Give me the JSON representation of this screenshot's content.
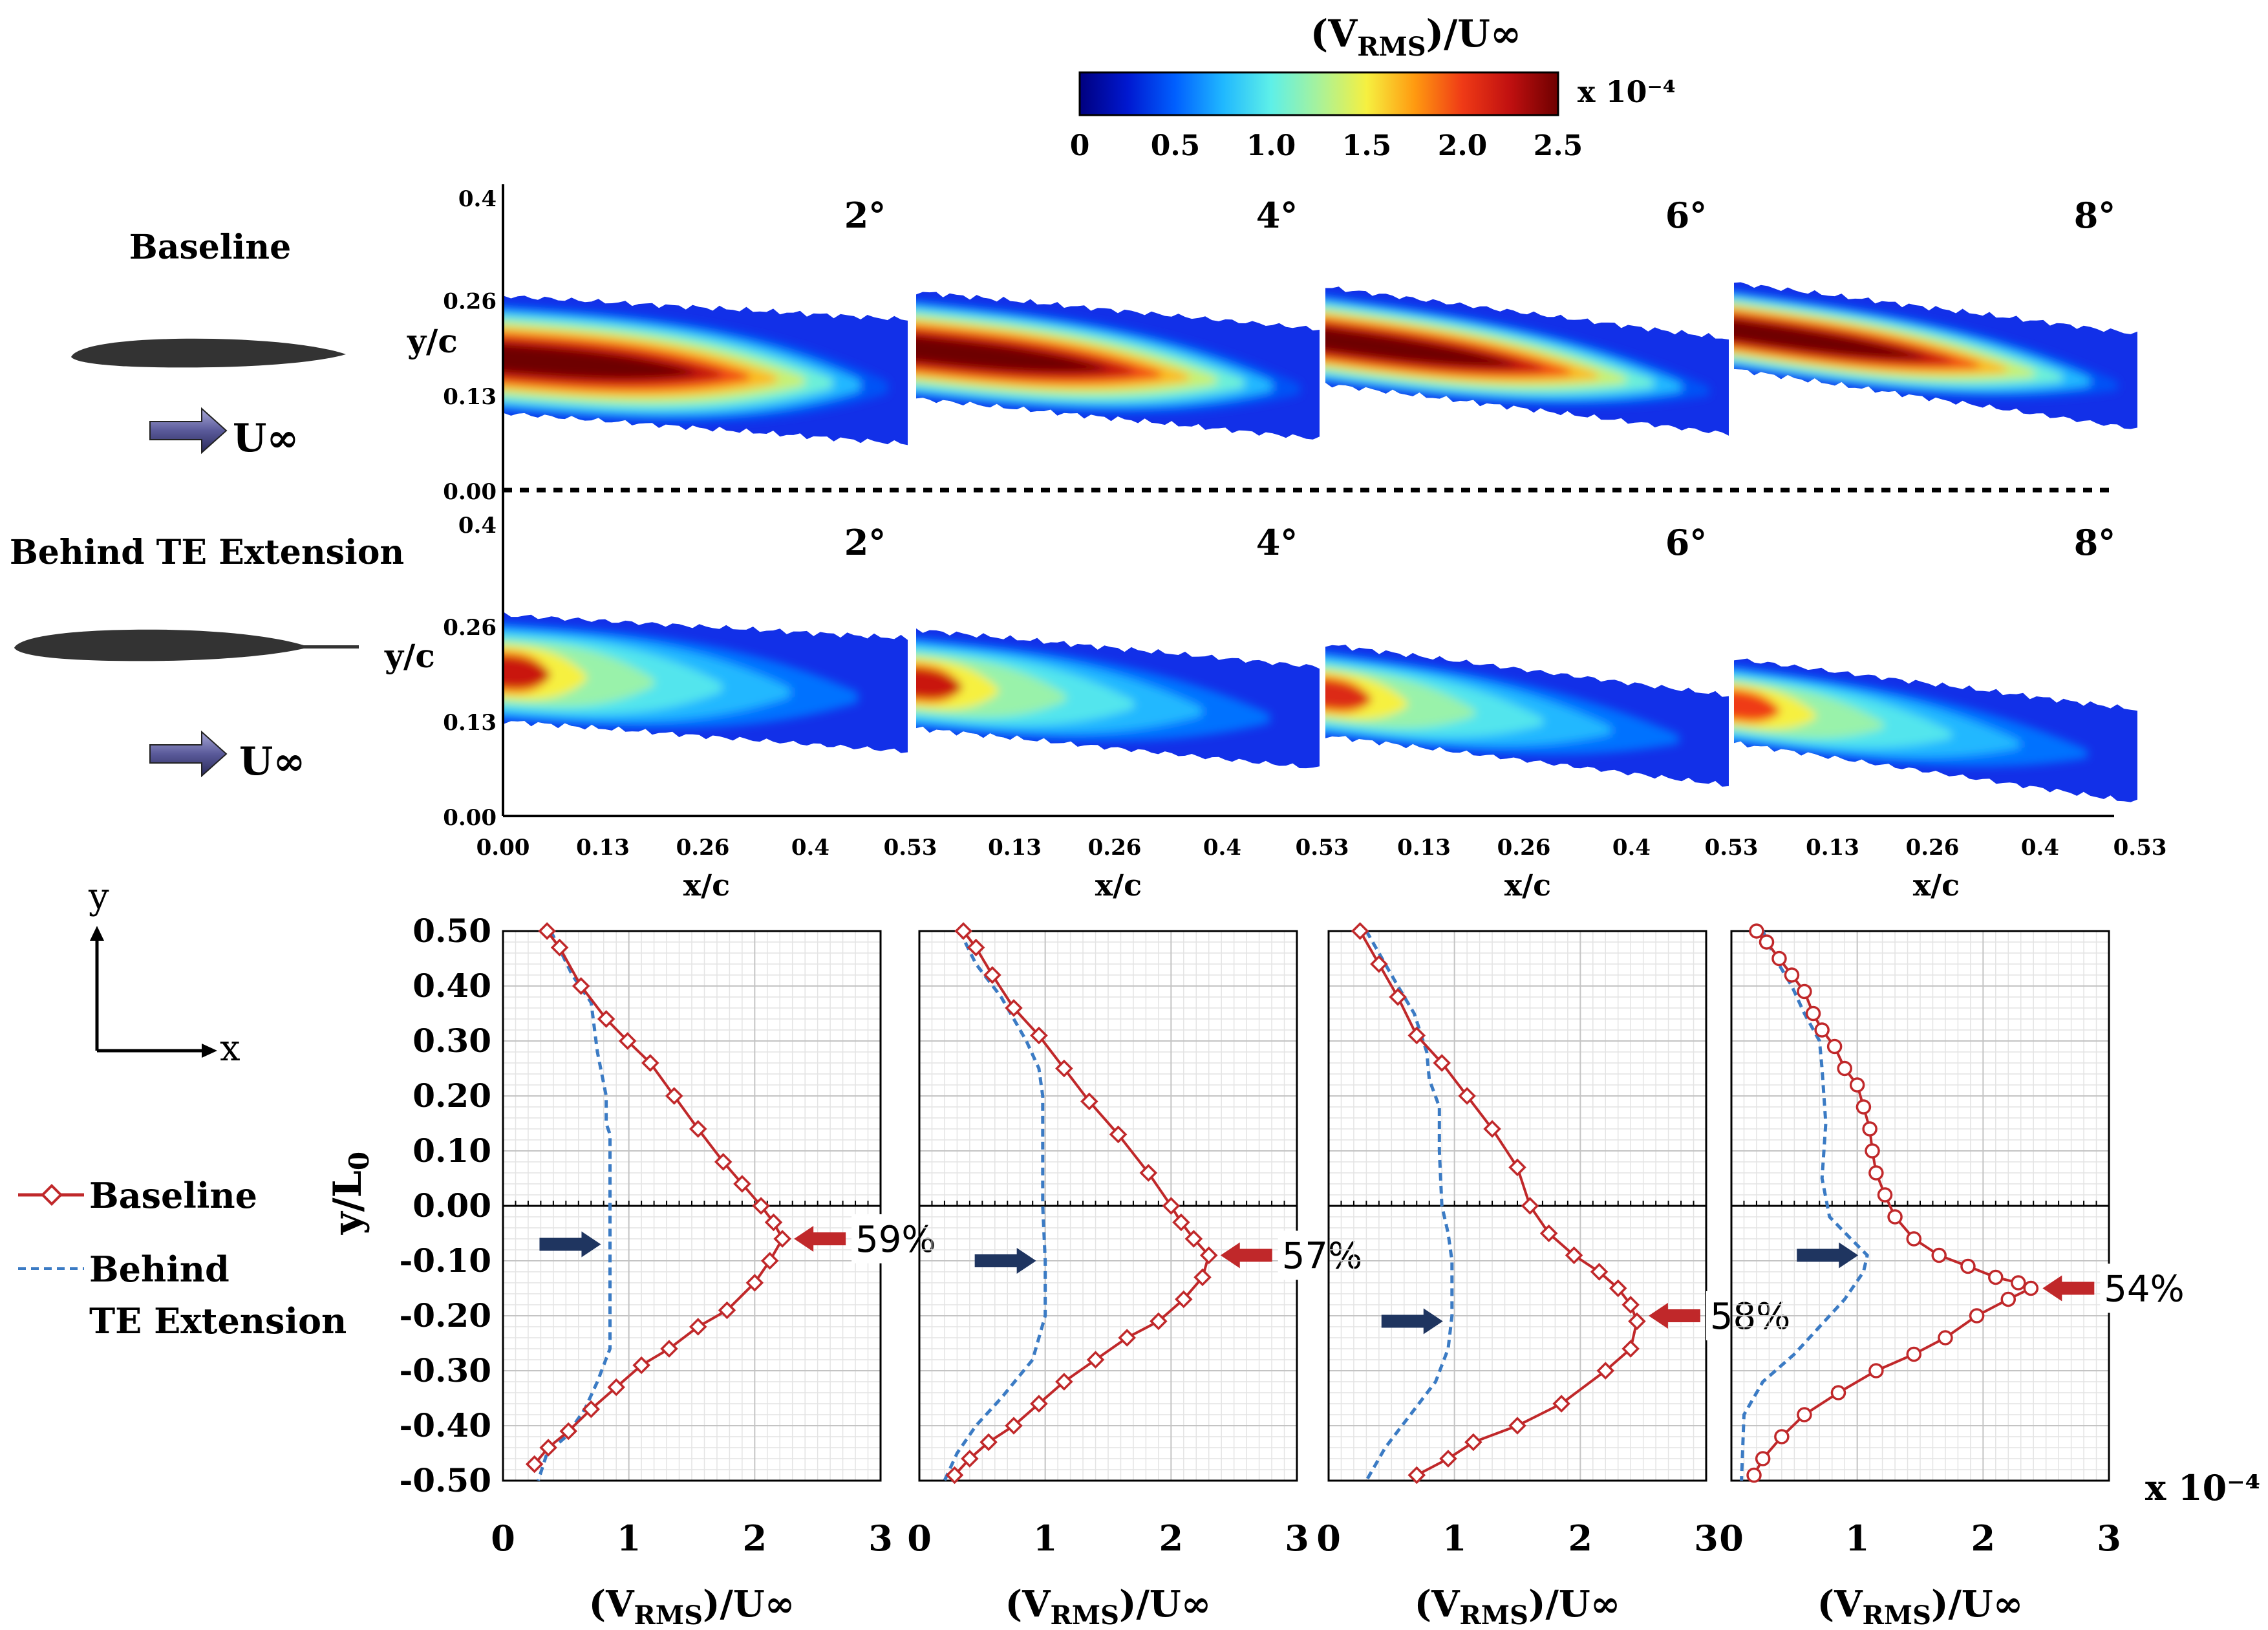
{
  "colorbar": {
    "title_main": "(V",
    "title_sub": "RMS",
    "title_end": ")/U∞",
    "ticks": [
      "0",
      "0.5",
      "1.0",
      "1.5",
      "2.0",
      "2.5"
    ],
    "multiplier": "x 10⁻⁴",
    "stops": [
      "#00007f",
      "#0018d0",
      "#0060ff",
      "#20b8ff",
      "#5ef0e8",
      "#a8f29a",
      "#f6f040",
      "#ff9a10",
      "#ef3a16",
      "#c01010",
      "#6e0000"
    ]
  },
  "row_labels": {
    "baseline": "Baseline",
    "extension": "Behind TE Extension",
    "freestream": "U∞"
  },
  "contour_panels": {
    "angles": [
      "2°",
      "4°",
      "6°",
      "8°"
    ],
    "y_label": "y/c",
    "x_label": "x/c",
    "y_ticks": [
      "0.4",
      "0.26",
      "0.13",
      "0.00"
    ],
    "x_ticks_first": [
      "0.00",
      "0.13",
      "0.26",
      "0.4",
      "0.53"
    ],
    "x_ticks_rest": [
      "0.13",
      "0.26",
      "0.4",
      "0.53"
    ],
    "baseline_peak": [
      2.5,
      2.5,
      2.5,
      2.5
    ],
    "extension_peak": [
      2.2,
      2.2,
      2.1,
      2.0
    ]
  },
  "axes_icon": {
    "y": "y",
    "x": "x"
  },
  "legend": {
    "baseline": "Baseline",
    "extension_line1": "Behind",
    "extension_line2": "TE Extension"
  },
  "chart_data": {
    "type": "line",
    "title": "",
    "ylabel": "y/L₀",
    "y_label_main": "y/L",
    "y_label_sub": "0",
    "xlabel": "(V_RMS)/U∞",
    "xlabel_main": "(V",
    "xlabel_sub": "RMS",
    "xlabel_end": ")/U∞",
    "xlim": [
      0,
      3
    ],
    "ylim": [
      -0.5,
      0.5
    ],
    "x_ticks": [
      "0",
      "1",
      "2",
      "3"
    ],
    "y_ticks": [
      "0.50",
      "0.40",
      "0.30",
      "0.20",
      "0.10",
      "0.00",
      "-0.10",
      "-0.20",
      "-0.30",
      "-0.40",
      "-0.50"
    ],
    "multiplier": "x 10⁻⁴",
    "panels": [
      {
        "angle": "2°",
        "reduction": "59%",
        "baseline_marker": "diamond",
        "baseline": {
          "x": [
            0.35,
            0.45,
            0.62,
            0.82,
            0.99,
            1.17,
            1.36,
            1.55,
            1.75,
            1.9,
            2.05,
            2.15,
            2.22,
            2.12,
            2.0,
            1.78,
            1.55,
            1.32,
            1.1,
            0.9,
            0.7,
            0.52,
            0.36,
            0.25
          ],
          "y": [
            0.5,
            0.47,
            0.4,
            0.34,
            0.3,
            0.26,
            0.2,
            0.14,
            0.08,
            0.04,
            0.0,
            -0.03,
            -0.06,
            -0.1,
            -0.14,
            -0.19,
            -0.22,
            -0.26,
            -0.29,
            -0.33,
            -0.37,
            -0.41,
            -0.44,
            -0.47
          ]
        },
        "extension": {
          "x": [
            0.38,
            0.55,
            0.7,
            0.75,
            0.82,
            0.82,
            0.85,
            0.85,
            0.85,
            0.85,
            0.85,
            0.75,
            0.65,
            0.5,
            0.35,
            0.28
          ],
          "y": [
            0.5,
            0.42,
            0.37,
            0.28,
            0.2,
            0.15,
            0.13,
            0.0,
            -0.1,
            -0.2,
            -0.26,
            -0.32,
            -0.37,
            -0.42,
            -0.45,
            -0.5
          ]
        },
        "peak_arrow_y": -0.06,
        "ext_arrow_y": -0.07
      },
      {
        "angle": "4°",
        "reduction": "57%",
        "baseline_marker": "diamond",
        "baseline": {
          "x": [
            0.35,
            0.45,
            0.58,
            0.75,
            0.95,
            1.15,
            1.35,
            1.58,
            1.82,
            2.0,
            2.08,
            2.18,
            2.3,
            2.25,
            2.1,
            1.9,
            1.65,
            1.4,
            1.15,
            0.95,
            0.75,
            0.55,
            0.4,
            0.28
          ],
          "y": [
            0.5,
            0.47,
            0.42,
            0.36,
            0.31,
            0.25,
            0.19,
            0.13,
            0.06,
            0.0,
            -0.03,
            -0.06,
            -0.09,
            -0.13,
            -0.17,
            -0.21,
            -0.24,
            -0.28,
            -0.32,
            -0.36,
            -0.4,
            -0.43,
            -0.46,
            -0.49
          ]
        },
        "extension": {
          "x": [
            0.32,
            0.45,
            0.65,
            0.85,
            0.95,
            0.98,
            0.98,
            0.98,
            1.0,
            1.0,
            0.9,
            0.65,
            0.45,
            0.3,
            0.2
          ],
          "y": [
            0.5,
            0.44,
            0.38,
            0.3,
            0.25,
            0.2,
            0.1,
            0.0,
            -0.1,
            -0.2,
            -0.28,
            -0.35,
            -0.4,
            -0.45,
            -0.5
          ]
        },
        "peak_arrow_y": -0.09,
        "ext_arrow_y": -0.1
      },
      {
        "angle": "6°",
        "reduction": "58%",
        "baseline_marker": "diamond",
        "baseline": {
          "x": [
            0.25,
            0.4,
            0.55,
            0.7,
            0.9,
            1.1,
            1.3,
            1.5,
            1.6,
            1.75,
            1.95,
            2.15,
            2.3,
            2.4,
            2.45,
            2.4,
            2.2,
            1.85,
            1.5,
            1.15,
            0.95,
            0.7
          ],
          "y": [
            0.5,
            0.44,
            0.38,
            0.31,
            0.26,
            0.2,
            0.14,
            0.07,
            0.0,
            -0.05,
            -0.09,
            -0.12,
            -0.15,
            -0.18,
            -0.21,
            -0.26,
            -0.3,
            -0.36,
            -0.4,
            -0.43,
            -0.46,
            -0.49
          ]
        },
        "extension": {
          "x": [
            0.3,
            0.45,
            0.55,
            0.68,
            0.78,
            0.8,
            0.88,
            0.88,
            0.9,
            0.95,
            0.98,
            0.98,
            0.95,
            0.85,
            0.65,
            0.45,
            0.3
          ],
          "y": [
            0.5,
            0.44,
            0.4,
            0.35,
            0.28,
            0.23,
            0.18,
            0.1,
            0.0,
            -0.05,
            -0.1,
            -0.2,
            -0.26,
            -0.32,
            -0.38,
            -0.44,
            -0.5
          ]
        },
        "peak_arrow_y": -0.2,
        "ext_arrow_y": -0.21
      },
      {
        "angle": "8°",
        "reduction": "54%",
        "baseline_marker": "circle",
        "baseline": {
          "x": [
            0.2,
            0.28,
            0.38,
            0.48,
            0.58,
            0.65,
            0.72,
            0.82,
            0.9,
            1.0,
            1.05,
            1.1,
            1.12,
            1.15,
            1.22,
            1.3,
            1.45,
            1.65,
            1.88,
            2.1,
            2.28,
            2.38,
            2.2,
            1.95,
            1.7,
            1.45,
            1.15,
            0.85,
            0.58,
            0.4,
            0.25,
            0.18
          ],
          "y": [
            0.5,
            0.48,
            0.45,
            0.42,
            0.39,
            0.35,
            0.32,
            0.29,
            0.25,
            0.22,
            0.18,
            0.14,
            0.1,
            0.06,
            0.02,
            -0.02,
            -0.06,
            -0.09,
            -0.11,
            -0.13,
            -0.14,
            -0.15,
            -0.17,
            -0.2,
            -0.24,
            -0.27,
            -0.3,
            -0.34,
            -0.38,
            -0.42,
            -0.46,
            -0.49
          ]
        },
        "extension": {
          "x": [
            0.25,
            0.35,
            0.48,
            0.58,
            0.7,
            0.72,
            0.75,
            0.72,
            0.78,
            0.95,
            1.08,
            1.05,
            0.9,
            0.7,
            0.5,
            0.25,
            0.1,
            0.08
          ],
          "y": [
            0.5,
            0.45,
            0.4,
            0.35,
            0.3,
            0.25,
            0.15,
            0.05,
            -0.02,
            -0.06,
            -0.09,
            -0.12,
            -0.17,
            -0.22,
            -0.27,
            -0.32,
            -0.38,
            -0.5
          ]
        },
        "peak_arrow_y": -0.15,
        "ext_arrow_y": -0.09
      }
    ]
  }
}
